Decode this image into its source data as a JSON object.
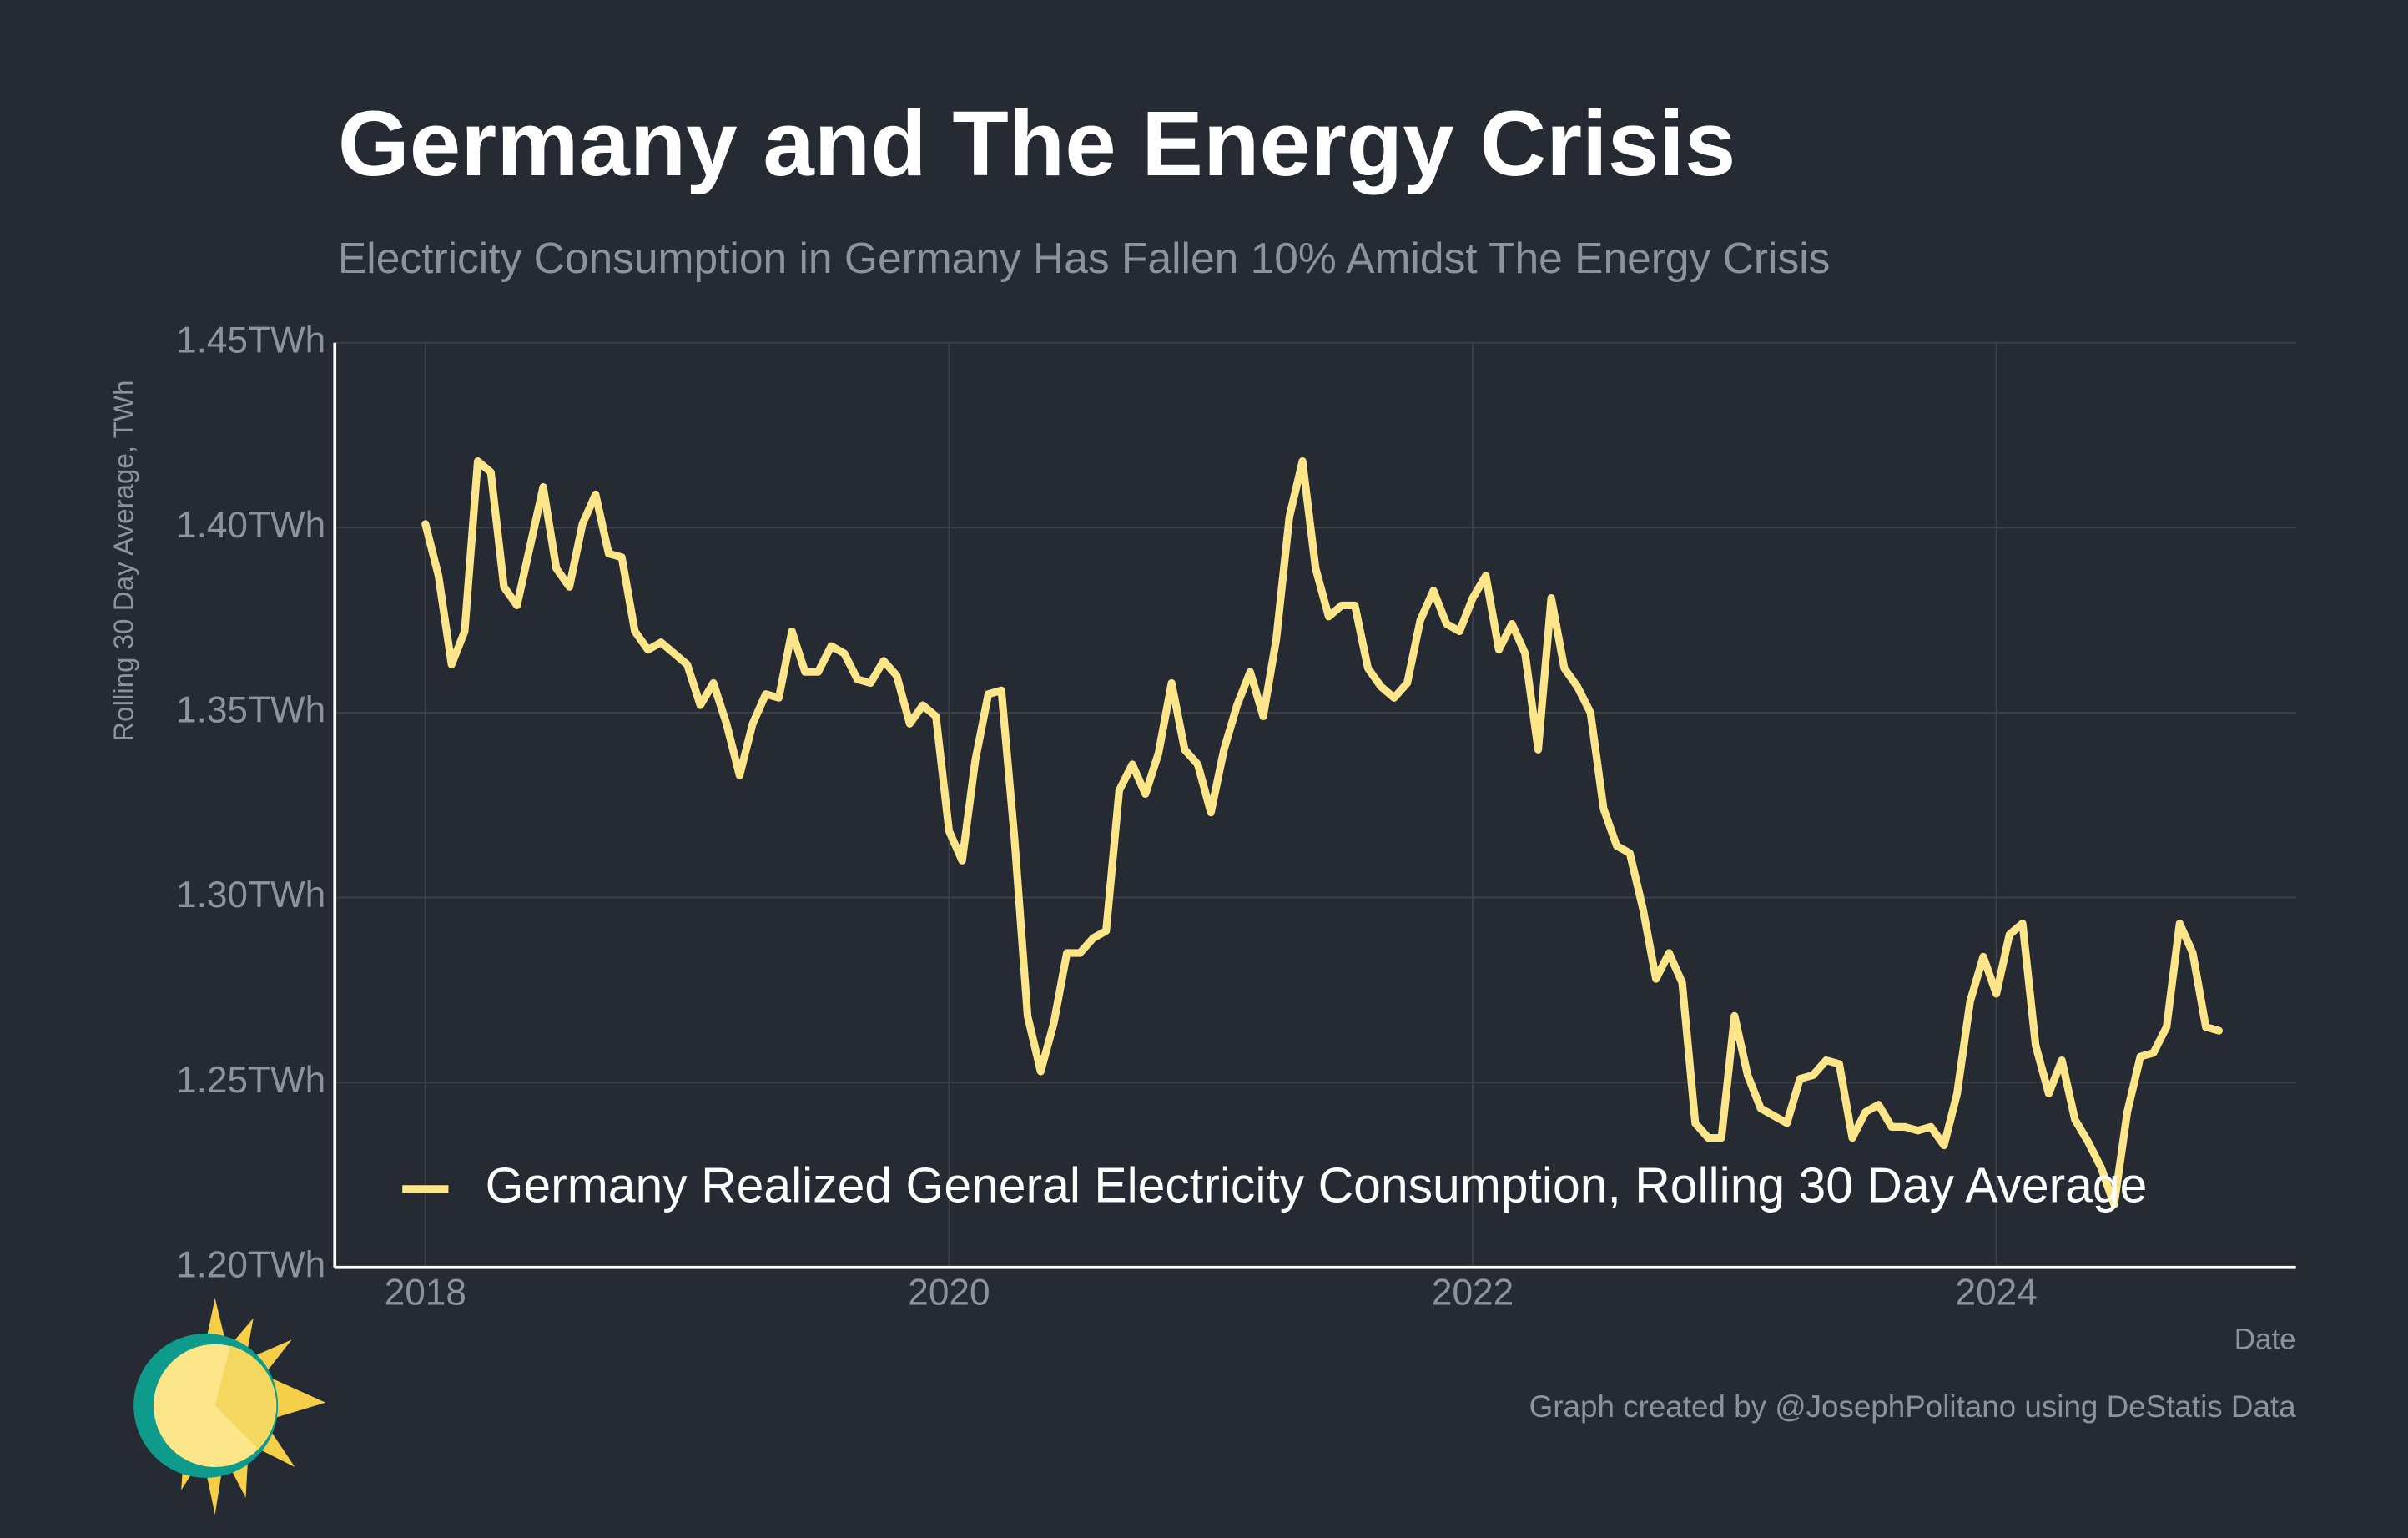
{
  "chart_data": {
    "type": "line",
    "title": "Germany and The Energy Crisis",
    "subtitle": "Electricity Consumption in Germany Has Fallen 10% Amidst The Energy Crisis",
    "ylabel": "Rolling 30 Day Average, TWh",
    "xlabel": "Date",
    "caption": "Graph created by @JosephPolitano using DeStatis Data",
    "legend": "lower center",
    "grid": true,
    "xlim": [
      2017.654,
      2025.144
    ],
    "xticks": [
      2018,
      2020,
      2022,
      2024
    ],
    "ylim": [
      1.2,
      1.45
    ],
    "yticks": [
      {
        "value": 1.2,
        "label": "1.20TWh"
      },
      {
        "value": 1.25,
        "label": "1.25TWh"
      },
      {
        "value": 1.3,
        "label": "1.30TWh"
      },
      {
        "value": 1.35,
        "label": "1.35TWh"
      },
      {
        "value": 1.4,
        "label": "1.40TWh"
      },
      {
        "value": 1.45,
        "label": "1.45TWh"
      }
    ],
    "x": [
      2018.0,
      2018.05,
      2018.1,
      2018.15,
      2018.2,
      2018.25,
      2018.3,
      2018.35,
      2018.4,
      2018.45,
      2018.5,
      2018.55,
      2018.6,
      2018.65,
      2018.7,
      2018.75,
      2018.8,
      2018.85,
      2018.9,
      2018.95,
      2019.0,
      2019.05,
      2019.1,
      2019.15,
      2019.2,
      2019.25,
      2019.3,
      2019.35,
      2019.4,
      2019.45,
      2019.5,
      2019.55,
      2019.6,
      2019.65,
      2019.7,
      2019.75,
      2019.8,
      2019.85,
      2019.9,
      2019.95,
      2020.0,
      2020.05,
      2020.1,
      2020.15,
      2020.2,
      2020.25,
      2020.3,
      2020.35,
      2020.4,
      2020.45,
      2020.5,
      2020.55,
      2020.6,
      2020.65,
      2020.7,
      2020.75,
      2020.8,
      2020.85,
      2020.9,
      2020.95,
      2021.0,
      2021.05,
      2021.1,
      2021.15,
      2021.2,
      2021.25,
      2021.3,
      2021.35,
      2021.4,
      2021.45,
      2021.5,
      2021.55,
      2021.6,
      2021.65,
      2021.7,
      2021.75,
      2021.8,
      2021.85,
      2021.9,
      2021.95,
      2022.0,
      2022.05,
      2022.1,
      2022.15,
      2022.2,
      2022.25,
      2022.3,
      2022.35,
      2022.4,
      2022.45,
      2022.5,
      2022.55,
      2022.6,
      2022.65,
      2022.7,
      2022.75,
      2022.8,
      2022.85,
      2022.9,
      2022.95,
      2023.0,
      2023.05,
      2023.1,
      2023.15,
      2023.2,
      2023.25,
      2023.3,
      2023.35,
      2023.4,
      2023.45,
      2023.5,
      2023.55,
      2023.6,
      2023.65,
      2023.7,
      2023.75,
      2023.8,
      2023.85,
      2023.9,
      2023.95,
      2024.0,
      2024.05,
      2024.1,
      2024.15,
      2024.2,
      2024.25,
      2024.3,
      2024.35,
      2024.4,
      2024.45,
      2024.5,
      2024.55,
      2024.6,
      2024.65,
      2024.7,
      2024.75,
      2024.8,
      2024.85
    ],
    "series": [
      {
        "name": "Germany Realized General Electricity Consumption, Rolling 30 Day Average",
        "color": "#fde68a",
        "values": [
          1.401,
          1.387,
          1.363,
          1.372,
          1.418,
          1.415,
          1.384,
          1.379,
          1.395,
          1.411,
          1.389,
          1.384,
          1.401,
          1.409,
          1.393,
          1.392,
          1.372,
          1.367,
          1.369,
          1.366,
          1.363,
          1.352,
          1.358,
          1.347,
          1.333,
          1.347,
          1.355,
          1.354,
          1.372,
          1.361,
          1.361,
          1.368,
          1.366,
          1.359,
          1.358,
          1.364,
          1.36,
          1.347,
          1.352,
          1.349,
          1.318,
          1.31,
          1.337,
          1.355,
          1.356,
          1.316,
          1.268,
          1.253,
          1.266,
          1.285,
          1.285,
          1.289,
          1.291,
          1.329,
          1.336,
          1.328,
          1.339,
          1.358,
          1.34,
          1.336,
          1.323,
          1.34,
          1.352,
          1.361,
          1.349,
          1.37,
          1.403,
          1.418,
          1.389,
          1.376,
          1.379,
          1.379,
          1.362,
          1.357,
          1.354,
          1.358,
          1.375,
          1.383,
          1.374,
          1.372,
          1.381,
          1.387,
          1.367,
          1.374,
          1.366,
          1.34,
          1.381,
          1.362,
          1.357,
          1.35,
          1.324,
          1.314,
          1.312,
          1.297,
          1.278,
          1.285,
          1.277,
          1.239,
          1.235,
          1.235,
          1.268,
          1.252,
          1.243,
          1.241,
          1.239,
          1.251,
          1.252,
          1.256,
          1.255,
          1.235,
          1.242,
          1.244,
          1.238,
          1.238,
          1.237,
          1.238,
          1.233,
          1.247,
          1.272,
          1.284,
          1.274,
          1.29,
          1.293,
          1.26,
          1.247,
          1.256,
          1.24,
          1.234,
          1.227,
          1.217,
          1.242,
          1.257,
          1.258,
          1.265,
          1.293,
          1.285,
          1.265,
          1.264
        ]
      }
    ]
  }
}
